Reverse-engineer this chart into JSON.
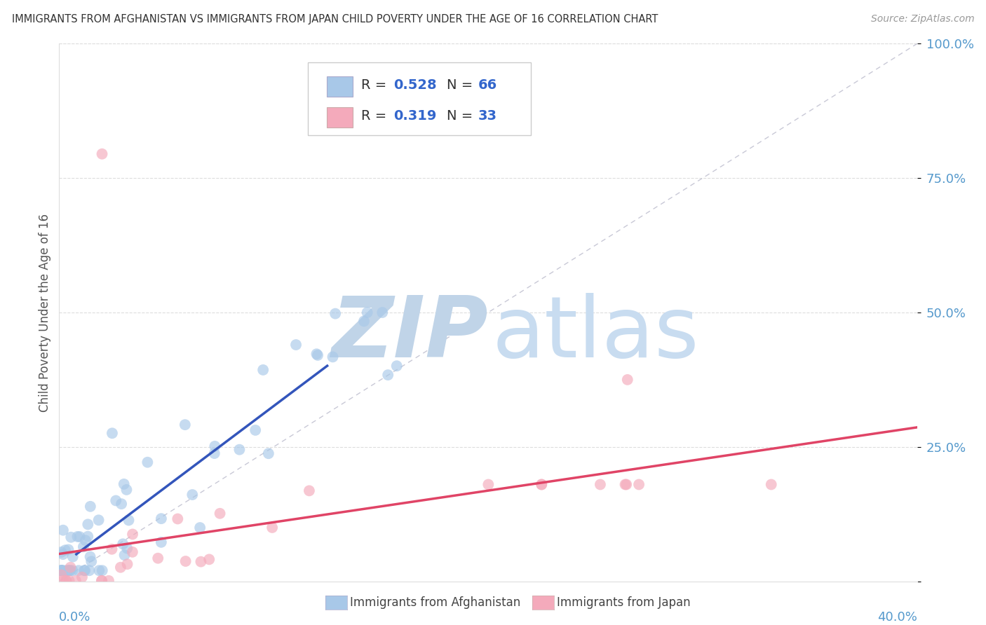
{
  "title": "IMMIGRANTS FROM AFGHANISTAN VS IMMIGRANTS FROM JAPAN CHILD POVERTY UNDER THE AGE OF 16 CORRELATION CHART",
  "source": "Source: ZipAtlas.com",
  "ylabel": "Child Poverty Under the Age of 16",
  "xlim": [
    0.0,
    0.4
  ],
  "ylim": [
    0.0,
    1.0
  ],
  "yticks": [
    0.0,
    0.25,
    0.5,
    0.75,
    1.0
  ],
  "ytick_labels": [
    "",
    "25.0%",
    "50.0%",
    "75.0%",
    "100.0%"
  ],
  "afghanistan_R": 0.528,
  "afghanistan_N": 66,
  "japan_R": 0.319,
  "japan_N": 33,
  "afghanistan_color": "#A8C8E8",
  "japan_color": "#F4AABB",
  "afghanistan_line_color": "#3355BB",
  "japan_line_color": "#E04466",
  "diag_color": "#BBBBCC",
  "watermark_zip_color": "#C0D4E8",
  "watermark_atlas_color": "#C8DCF0",
  "legend_bg": "#FFFFFF",
  "legend_border": "#CCCCCC",
  "grid_color": "#DDDDDD",
  "tick_color": "#5599CC",
  "label_color": "#333333",
  "source_color": "#999999",
  "ylabel_color": "#555555",
  "r_label_color": "#333333",
  "r_value_color": "#3366CC",
  "n_value_color": "#3366CC"
}
